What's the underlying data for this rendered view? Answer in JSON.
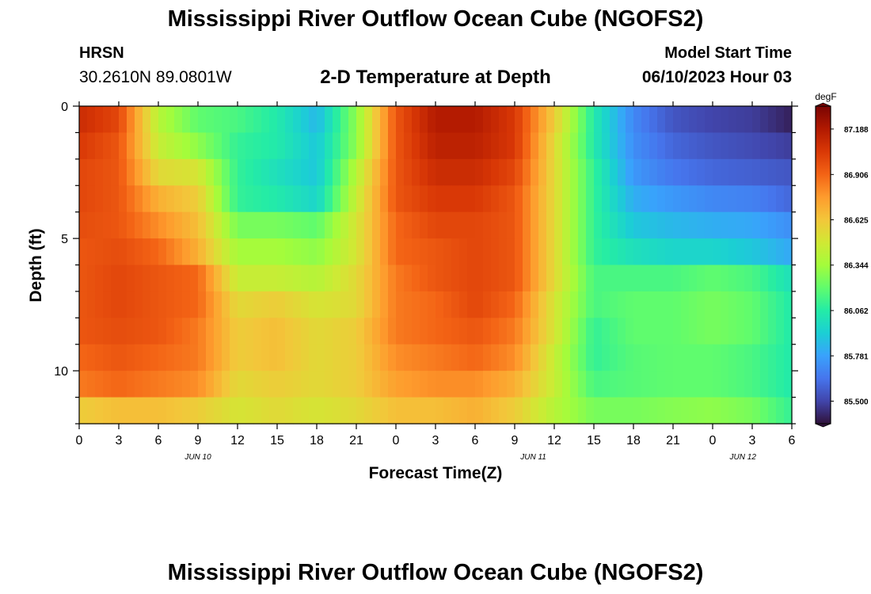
{
  "header": {
    "title": "Mississippi River Outflow Ocean Cube (NGOFS2)",
    "station": "HRSN",
    "coords": "30.2610N  89.0801W",
    "subtitle": "2-D Temperature at Depth",
    "start_label": "Model Start Time",
    "start_value": "06/10/2023 Hour 03"
  },
  "footer": {
    "title": "Mississippi River Outflow Ocean Cube (NGOFS2)"
  },
  "chart_data": {
    "type": "heatmap",
    "xlabel": "Forecast Time(Z)",
    "ylabel": "Depth (ft)",
    "x_tick_labels": [
      "0",
      "3",
      "6",
      "9",
      "12",
      "15",
      "18",
      "21",
      "0",
      "3",
      "6",
      "9",
      "12",
      "15",
      "18",
      "21",
      "0",
      "3",
      "6"
    ],
    "date_labels": [
      "JUN 10",
      "JUN 11",
      "JUN 12"
    ],
    "y_tick_labels": [
      "0",
      "5",
      "10"
    ],
    "ylim": [
      0,
      12
    ],
    "y_inverted": true,
    "colorbar": {
      "unit": "degF",
      "tick_labels": [
        "87.188",
        "86.906",
        "86.625",
        "86.344",
        "86.062",
        "85.781",
        "85.500"
      ],
      "range": [
        85.36,
        87.33
      ],
      "colors": [
        "#30123b",
        "#4145ab",
        "#4675ed",
        "#39a2fc",
        "#1bcfd4",
        "#24eca6",
        "#61fc6c",
        "#a4fc3b",
        "#d1e834",
        "#f3c63a",
        "#fe9b2d",
        "#f36315",
        "#d93806",
        "#b11901",
        "#7a0403"
      ]
    },
    "depths_ft": [
      0.5,
      1.5,
      2.5,
      3.5,
      4.5,
      5.5,
      6.5,
      7.5,
      8.5,
      9.5,
      10.5,
      11.5
    ],
    "times_h": [
      0,
      3,
      6,
      9,
      12,
      15,
      18,
      21,
      24,
      27,
      30,
      33,
      36,
      39,
      42,
      45,
      48,
      51,
      54
    ],
    "values": [
      [
        87.1,
        87.0,
        86.4,
        86.2,
        86.15,
        86.05,
        85.85,
        86.3,
        86.95,
        87.18,
        87.18,
        87.05,
        86.6,
        86.05,
        85.7,
        85.55,
        85.5,
        85.48,
        85.4
      ],
      [
        87.05,
        86.95,
        86.45,
        86.3,
        86.1,
        86.05,
        85.9,
        86.3,
        86.95,
        87.15,
        87.15,
        87.05,
        86.55,
        86.05,
        85.72,
        85.6,
        85.55,
        85.52,
        85.48
      ],
      [
        87.0,
        86.95,
        86.55,
        86.5,
        86.1,
        86.0,
        85.9,
        86.4,
        86.95,
        87.1,
        87.1,
        87.0,
        86.55,
        86.1,
        85.75,
        85.65,
        85.6,
        85.58,
        85.55
      ],
      [
        87.0,
        86.95,
        86.7,
        86.6,
        86.1,
        86.05,
        85.95,
        86.45,
        86.95,
        87.05,
        87.05,
        86.95,
        86.55,
        86.1,
        85.82,
        85.75,
        85.7,
        85.68,
        85.6
      ],
      [
        86.98,
        86.95,
        86.8,
        86.65,
        86.25,
        86.25,
        86.2,
        86.5,
        86.9,
        87.0,
        87.0,
        86.95,
        86.55,
        86.1,
        85.9,
        85.85,
        85.82,
        85.8,
        85.72
      ],
      [
        86.95,
        86.98,
        86.9,
        86.7,
        86.35,
        86.35,
        86.3,
        86.5,
        86.9,
        86.95,
        87.0,
        86.95,
        86.55,
        86.1,
        86.0,
        85.95,
        85.95,
        85.9,
        85.8
      ],
      [
        86.95,
        87.0,
        86.95,
        86.9,
        86.45,
        86.45,
        86.4,
        86.55,
        86.85,
        86.95,
        87.0,
        86.95,
        86.55,
        86.15,
        86.15,
        86.15,
        86.2,
        86.15,
        86.0
      ],
      [
        86.95,
        87.0,
        86.95,
        86.9,
        86.55,
        86.6,
        86.5,
        86.55,
        86.85,
        86.9,
        87.0,
        86.9,
        86.5,
        86.15,
        86.2,
        86.2,
        86.25,
        86.2,
        86.05
      ],
      [
        86.95,
        86.98,
        86.95,
        86.85,
        86.6,
        86.65,
        86.55,
        86.6,
        86.85,
        86.9,
        86.95,
        86.85,
        86.5,
        86.1,
        86.2,
        86.2,
        86.25,
        86.2,
        86.05
      ],
      [
        86.9,
        86.95,
        86.9,
        86.85,
        86.6,
        86.65,
        86.55,
        86.6,
        86.8,
        86.85,
        86.9,
        86.8,
        86.45,
        86.1,
        86.18,
        86.2,
        86.2,
        86.15,
        86.05
      ],
      [
        86.85,
        86.9,
        86.85,
        86.8,
        86.55,
        86.6,
        86.55,
        86.6,
        86.75,
        86.8,
        86.8,
        86.7,
        86.45,
        86.15,
        86.18,
        86.2,
        86.2,
        86.15,
        86.05
      ],
      [
        86.6,
        86.65,
        86.65,
        86.6,
        86.5,
        86.55,
        86.5,
        86.55,
        86.65,
        86.65,
        86.7,
        86.6,
        86.4,
        86.25,
        86.25,
        86.28,
        86.3,
        86.25,
        86.1
      ]
    ]
  }
}
